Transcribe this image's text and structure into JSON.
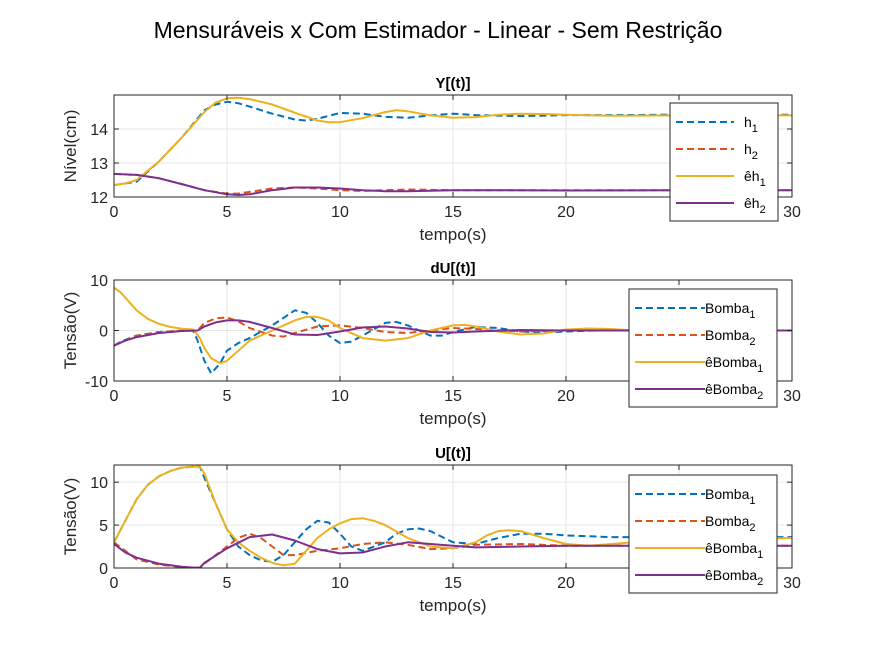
{
  "figure": {
    "title": "Mensuráveis x Com Estimador - Linear - Sem Restrição"
  },
  "chart_data": [
    {
      "type": "line",
      "title": "Y[(t)]",
      "xlabel": "tempo(s)",
      "ylabel": "Nível(cm)",
      "xlim": [
        0,
        30
      ],
      "ylim": [
        12,
        15
      ],
      "xticks": [
        0,
        5,
        10,
        15,
        20,
        25,
        30
      ],
      "xtick_labels": [
        "0",
        "5",
        "10",
        "15",
        "20",
        "",
        "30"
      ],
      "yticks": [
        12,
        13,
        14
      ],
      "grid": true,
      "legend": "right",
      "series": [
        {
          "name": "h",
          "sub": "1",
          "color": "#0072BD",
          "dash": true,
          "x": [
            0,
            1,
            2,
            3,
            4,
            4.5,
            5,
            5.5,
            6,
            7,
            8,
            8.5,
            9,
            10,
            11,
            12,
            13,
            14,
            15,
            16,
            18,
            20,
            22,
            25,
            30
          ],
          "y": [
            12.35,
            12.45,
            13.05,
            13.75,
            14.55,
            14.72,
            14.8,
            14.76,
            14.66,
            14.45,
            14.28,
            14.25,
            14.3,
            14.47,
            14.45,
            14.36,
            14.33,
            14.4,
            14.45,
            14.41,
            14.38,
            14.41,
            14.41,
            14.42,
            14.42
          ]
        },
        {
          "name": "h",
          "sub": "2",
          "color": "#D95319",
          "dash": true,
          "x": [
            0,
            1,
            2,
            3,
            4,
            5,
            5.5,
            6,
            7,
            8,
            9,
            10,
            11,
            12,
            13,
            15,
            17,
            20,
            25,
            30
          ],
          "y": [
            12.68,
            12.65,
            12.55,
            12.38,
            12.2,
            12.1,
            12.1,
            12.15,
            12.25,
            12.28,
            12.25,
            12.2,
            12.18,
            12.2,
            12.22,
            12.2,
            12.2,
            12.2,
            12.2,
            12.2
          ]
        },
        {
          "name": "êh",
          "sub": "1",
          "color": "#EDB120",
          "dash": false,
          "x": [
            0,
            0.5,
            1,
            2,
            3,
            4,
            4.5,
            5,
            5.5,
            6,
            7,
            8,
            9,
            9.5,
            10,
            11,
            12,
            12.5,
            13,
            14,
            15,
            16,
            17,
            18,
            19,
            20,
            22,
            25,
            30
          ],
          "y": [
            12.35,
            12.4,
            12.5,
            13.05,
            13.75,
            14.5,
            14.78,
            14.9,
            14.92,
            14.88,
            14.72,
            14.48,
            14.25,
            14.2,
            14.2,
            14.32,
            14.5,
            14.55,
            14.52,
            14.4,
            14.33,
            14.35,
            14.42,
            14.45,
            14.44,
            14.42,
            14.39,
            14.4,
            14.4
          ]
        },
        {
          "name": "êh",
          "sub": "2",
          "color": "#7E2F8E",
          "dash": false,
          "x": [
            0,
            1,
            2,
            3,
            4,
            5,
            5.5,
            6,
            7,
            8,
            9,
            10,
            11,
            12,
            13,
            15,
            17,
            20,
            25,
            30
          ],
          "y": [
            12.68,
            12.65,
            12.55,
            12.38,
            12.2,
            12.08,
            12.06,
            12.08,
            12.2,
            12.28,
            12.28,
            12.25,
            12.2,
            12.17,
            12.17,
            12.2,
            12.2,
            12.19,
            12.2,
            12.2
          ]
        }
      ]
    },
    {
      "type": "line",
      "title": "dU[(t)]",
      "xlabel": "tempo(s)",
      "ylabel": "Tensão(V)",
      "xlim": [
        0,
        30
      ],
      "ylim": [
        -10,
        10
      ],
      "xticks": [
        0,
        5,
        10,
        15,
        20,
        25,
        30
      ],
      "xtick_labels": [
        "0",
        "5",
        "10",
        "15",
        "20",
        "",
        "30"
      ],
      "yticks": [
        -10,
        0,
        10
      ],
      "grid": true,
      "legend": "right",
      "series": [
        {
          "name": "Bomba",
          "sub": "1",
          "color": "#0072BD",
          "dash": true,
          "x": [
            0,
            0.3,
            1,
            2,
            3,
            3.5,
            3.7,
            4,
            4.3,
            4.7,
            5,
            5.5,
            6,
            7,
            7.5,
            8,
            8.5,
            9,
            9.5,
            10,
            10.5,
            11,
            12,
            12.5,
            13,
            14,
            14.5,
            15,
            16,
            17,
            18,
            19,
            20,
            22,
            24,
            26,
            28,
            30
          ],
          "y": [
            -3,
            -2.2,
            -1,
            -0.3,
            -0.05,
            0,
            -2,
            -6,
            -8.5,
            -6.5,
            -4,
            -2.5,
            -1.5,
            1,
            2.5,
            4,
            3.5,
            1.5,
            -1,
            -2.5,
            -2.2,
            -1,
            1.5,
            1.7,
            1,
            -1,
            -1,
            -0.3,
            0.7,
            0.5,
            -0.2,
            -0.4,
            -0.2,
            0.1,
            0,
            0,
            0,
            0
          ]
        },
        {
          "name": "Bomba",
          "sub": "2",
          "color": "#D95319",
          "dash": true,
          "x": [
            0,
            1,
            2,
            3,
            3.7,
            4,
            4.5,
            5,
            5.5,
            6,
            7,
            7.5,
            8,
            9,
            10,
            11,
            12,
            13,
            14,
            15,
            16,
            18,
            20,
            25,
            30
          ],
          "y": [
            -3,
            -1,
            -0.3,
            -0.05,
            0,
            1.5,
            2.4,
            2.6,
            1.8,
            0.5,
            -1,
            -1.2,
            -0.5,
            0.8,
            1,
            0.5,
            -0.3,
            -0.5,
            0,
            0.5,
            0.3,
            -0.2,
            0,
            0,
            0
          ]
        },
        {
          "name": "êBomba",
          "sub": "1",
          "color": "#EDB120",
          "dash": false,
          "x": [
            0,
            0.3,
            0.7,
            1,
            1.5,
            2,
            2.5,
            3,
            3.5,
            3.8,
            4,
            4.3,
            4.7,
            5,
            5.5,
            6,
            7,
            8,
            8.5,
            9,
            9.5,
            10,
            11,
            12,
            13,
            14,
            15,
            15.5,
            16,
            17,
            18,
            19,
            20,
            21,
            22,
            23,
            24,
            26,
            28,
            30
          ],
          "y": [
            8.5,
            7.5,
            5.5,
            4,
            2.3,
            1.3,
            0.7,
            0.35,
            0.2,
            -1.5,
            -3.5,
            -5.5,
            -6.5,
            -6,
            -4,
            -2,
            0,
            2,
            2.7,
            2.7,
            2,
            0.5,
            -1.5,
            -2,
            -1.5,
            0,
            1,
            1.1,
            0.8,
            -0.2,
            -0.8,
            -0.6,
            0.2,
            0.4,
            0.3,
            0,
            -0.1,
            0,
            0,
            0
          ]
        },
        {
          "name": "êBomba",
          "sub": "2",
          "color": "#7E2F8E",
          "dash": false,
          "x": [
            0,
            0.5,
            1,
            2,
            3,
            3.7,
            4,
            4.5,
            5,
            5.5,
            6,
            7,
            8,
            9,
            10,
            11,
            12,
            13,
            14,
            15,
            16,
            18,
            20,
            25,
            30
          ],
          "y": [
            -3,
            -2,
            -1.3,
            -0.5,
            -0.1,
            0,
            0.8,
            1.6,
            2,
            2,
            1.7,
            0.5,
            -0.8,
            -0.9,
            -0.2,
            0.6,
            0.8,
            0.4,
            -0.3,
            -0.4,
            -0.2,
            0.1,
            0,
            0,
            0
          ]
        }
      ]
    },
    {
      "type": "line",
      "title": "U[(t)]",
      "xlabel": "tempo(s)",
      "ylabel": "Tensão(V)",
      "xlim": [
        0,
        30
      ],
      "ylim": [
        0,
        12
      ],
      "xticks": [
        0,
        5,
        10,
        15,
        20,
        25,
        30
      ],
      "xtick_labels": [
        "0",
        "5",
        "10",
        "15",
        "20",
        "",
        "30"
      ],
      "yticks": [
        0,
        5,
        10
      ],
      "grid": true,
      "legend": "right",
      "series": [
        {
          "name": "Bomba",
          "sub": "1",
          "color": "#0072BD",
          "dash": true,
          "x": [
            0,
            0.3,
            0.7,
            1,
            1.5,
            2,
            2.5,
            3,
            3.5,
            3.8,
            4,
            4.5,
            5,
            5.5,
            6,
            6.5,
            7,
            7.5,
            8,
            8.5,
            9,
            9.5,
            10,
            10.5,
            11,
            12,
            12.5,
            13,
            13.5,
            14,
            15,
            16,
            17,
            18,
            19,
            20,
            22,
            24,
            26,
            28,
            30
          ],
          "y": [
            3,
            4.5,
            6.5,
            8,
            9.7,
            10.7,
            11.3,
            11.7,
            11.8,
            11.8,
            10.5,
            7.5,
            4.5,
            2.5,
            1.5,
            0.9,
            0.7,
            1.5,
            3,
            4.5,
            5.5,
            5.3,
            4,
            2.5,
            2,
            3,
            4,
            4.5,
            4.6,
            4.3,
            3,
            2.8,
            3.5,
            4,
            4,
            3.8,
            3.6,
            3.6,
            3.6,
            3.6,
            3.6
          ]
        },
        {
          "name": "Bomba",
          "sub": "2",
          "color": "#D95319",
          "dash": true,
          "x": [
            0,
            1,
            2,
            3,
            3.5,
            3.8,
            4,
            5,
            5.5,
            6,
            6.5,
            7,
            7.5,
            8,
            9,
            10,
            11,
            12,
            13,
            14,
            15,
            16,
            18,
            20,
            25,
            30
          ],
          "y": [
            3,
            1,
            0.4,
            0.1,
            0.05,
            0,
            0.5,
            2.5,
            3.5,
            4,
            3.5,
            2.5,
            1.5,
            1.5,
            2,
            2.3,
            2.8,
            3,
            2.7,
            2.2,
            2.3,
            2.7,
            2.8,
            2.6,
            2.6,
            2.6
          ]
        },
        {
          "name": "êBomba",
          "sub": "1",
          "color": "#EDB120",
          "dash": false,
          "x": [
            0,
            0.3,
            0.7,
            1,
            1.5,
            2,
            2.5,
            3,
            3.5,
            3.8,
            4,
            4.5,
            5,
            5.5,
            6,
            6.5,
            7,
            7.5,
            8,
            8.5,
            9,
            9.5,
            10,
            10.5,
            11,
            11.5,
            12,
            13,
            14,
            15,
            16,
            16.5,
            17,
            17.5,
            18,
            19,
            20,
            21,
            22,
            23,
            24,
            26,
            28,
            30
          ],
          "y": [
            3,
            4.5,
            6.5,
            8,
            9.7,
            10.7,
            11.3,
            11.7,
            11.8,
            11.8,
            11,
            7.5,
            4.5,
            3,
            2,
            1.2,
            0.6,
            0.3,
            0.5,
            2,
            3.5,
            4.5,
            5.2,
            5.7,
            5.8,
            5.5,
            5,
            3.5,
            2.5,
            2.3,
            3,
            3.8,
            4.3,
            4.4,
            4.3,
            3.5,
            2.8,
            2.6,
            2.8,
            3,
            3.2,
            3.3,
            3.4,
            3.5
          ]
        },
        {
          "name": "êBomba",
          "sub": "2",
          "color": "#7E2F8E",
          "dash": false,
          "x": [
            0,
            0.5,
            1,
            2,
            3,
            3.5,
            3.8,
            4,
            5,
            6,
            7,
            8,
            9,
            10,
            11,
            12,
            13,
            14,
            15,
            16,
            18,
            20,
            22,
            25,
            30
          ],
          "y": [
            2.8,
            1.8,
            1.2,
            0.5,
            0.15,
            0.05,
            0.05,
            0.6,
            2.3,
            3.6,
            3.9,
            3.2,
            2.2,
            1.7,
            1.8,
            2.5,
            3,
            2.8,
            2.6,
            2.4,
            2.5,
            2.6,
            2.6,
            2.6,
            2.6
          ]
        }
      ]
    }
  ]
}
